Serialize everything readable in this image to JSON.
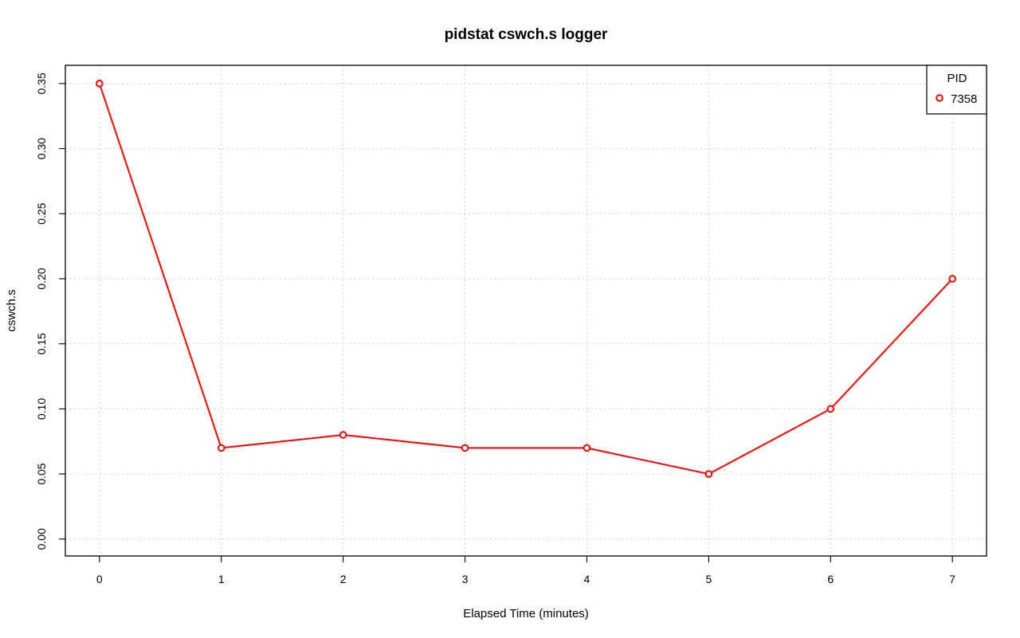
{
  "chart_data": {
    "type": "line",
    "title": "pidstat cswch.s logger",
    "xlabel": "Elapsed Time (minutes)",
    "ylabel": "cswch.s",
    "x": [
      0,
      1,
      2,
      3,
      4,
      5,
      6,
      7
    ],
    "xlim": [
      -0.28,
      7.28
    ],
    "ylim": [
      -0.013,
      0.364
    ],
    "x_ticks": [
      0,
      1,
      2,
      3,
      4,
      5,
      6,
      7
    ],
    "y_ticks": [
      0.0,
      0.05,
      0.1,
      0.15,
      0.2,
      0.25,
      0.3,
      0.35
    ],
    "y_tick_labels": [
      "0.00",
      "0.05",
      "0.10",
      "0.15",
      "0.20",
      "0.25",
      "0.30",
      "0.35"
    ],
    "grid": true,
    "legend": {
      "title": "PID",
      "placement": "top-right"
    },
    "series": [
      {
        "name": "7358",
        "color": "#ff0000",
        "marker": "open-circle",
        "values": [
          0.35,
          0.07,
          0.08,
          0.07,
          0.07,
          0.05,
          0.1,
          0.2
        ]
      }
    ]
  }
}
